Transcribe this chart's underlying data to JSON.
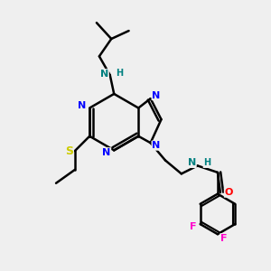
{
  "bg_color": "#efefef",
  "atom_colors": {
    "N": "#0000ff",
    "NH": "#008080",
    "S": "#cccc00",
    "F": "#ff00cc",
    "O": "#ff0000",
    "C": "#000000"
  },
  "bond_color": "#000000",
  "bond_width": 1.8,
  "font_size_atom": 8,
  "figsize": [
    3.0,
    3.0
  ],
  "dpi": 100
}
